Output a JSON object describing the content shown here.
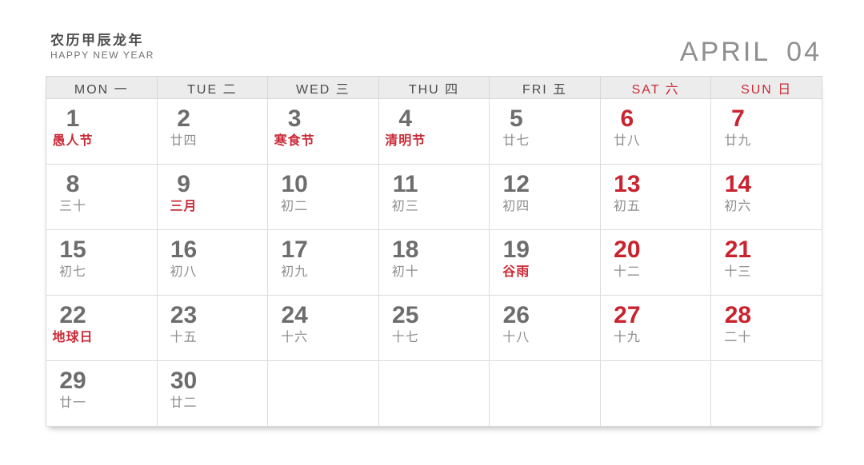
{
  "header": {
    "title": "农历甲辰龙年",
    "subtitle": "HAPPY NEW YEAR",
    "month_name": "APRIL",
    "month_number": "04"
  },
  "colors": {
    "accent_red": "#c9232f",
    "festival_red": "#cb2b37",
    "day_number_gray": "#6d6d6d",
    "lunar_gray": "#8d8d8d",
    "header_row_bg": "#ececec",
    "grid_border": "#dcdcdc"
  },
  "weekdays": [
    {
      "label": "MON 一",
      "weekend": false
    },
    {
      "label": "TUE 二",
      "weekend": false
    },
    {
      "label": "WED 三",
      "weekend": false
    },
    {
      "label": "THU 四",
      "weekend": false
    },
    {
      "label": "FRI 五",
      "weekend": false
    },
    {
      "label": "SAT 六",
      "weekend": true
    },
    {
      "label": "SUN 日",
      "weekend": true
    }
  ],
  "days": [
    {
      "date": "1",
      "lunar": "愚人节",
      "festival": true,
      "weekend": false
    },
    {
      "date": "2",
      "lunar": "廿四",
      "festival": false,
      "weekend": false
    },
    {
      "date": "3",
      "lunar": "寒食节",
      "festival": true,
      "weekend": false
    },
    {
      "date": "4",
      "lunar": "清明节",
      "festival": true,
      "weekend": false
    },
    {
      "date": "5",
      "lunar": "廿七",
      "festival": false,
      "weekend": false
    },
    {
      "date": "6",
      "lunar": "廿八",
      "festival": false,
      "weekend": true
    },
    {
      "date": "7",
      "lunar": "廿九",
      "festival": false,
      "weekend": true
    },
    {
      "date": "8",
      "lunar": "三十",
      "festival": false,
      "weekend": false
    },
    {
      "date": "9",
      "lunar": "三月",
      "festival": true,
      "weekend": false
    },
    {
      "date": "10",
      "lunar": "初二",
      "festival": false,
      "weekend": false
    },
    {
      "date": "11",
      "lunar": "初三",
      "festival": false,
      "weekend": false
    },
    {
      "date": "12",
      "lunar": "初四",
      "festival": false,
      "weekend": false
    },
    {
      "date": "13",
      "lunar": "初五",
      "festival": false,
      "weekend": true
    },
    {
      "date": "14",
      "lunar": "初六",
      "festival": false,
      "weekend": true
    },
    {
      "date": "15",
      "lunar": "初七",
      "festival": false,
      "weekend": false
    },
    {
      "date": "16",
      "lunar": "初八",
      "festival": false,
      "weekend": false
    },
    {
      "date": "17",
      "lunar": "初九",
      "festival": false,
      "weekend": false
    },
    {
      "date": "18",
      "lunar": "初十",
      "festival": false,
      "weekend": false
    },
    {
      "date": "19",
      "lunar": "谷雨",
      "festival": true,
      "weekend": false
    },
    {
      "date": "20",
      "lunar": "十二",
      "festival": false,
      "weekend": true
    },
    {
      "date": "21",
      "lunar": "十三",
      "festival": false,
      "weekend": true
    },
    {
      "date": "22",
      "lunar": "地球日",
      "festival": true,
      "weekend": false
    },
    {
      "date": "23",
      "lunar": "十五",
      "festival": false,
      "weekend": false
    },
    {
      "date": "24",
      "lunar": "十六",
      "festival": false,
      "weekend": false
    },
    {
      "date": "25",
      "lunar": "十七",
      "festival": false,
      "weekend": false
    },
    {
      "date": "26",
      "lunar": "十八",
      "festival": false,
      "weekend": false
    },
    {
      "date": "27",
      "lunar": "十九",
      "festival": false,
      "weekend": true
    },
    {
      "date": "28",
      "lunar": "二十",
      "festival": false,
      "weekend": true
    },
    {
      "date": "29",
      "lunar": "廿一",
      "festival": false,
      "weekend": false
    },
    {
      "date": "30",
      "lunar": "廿二",
      "festival": false,
      "weekend": false
    }
  ],
  "trailing_empty_cells": 5
}
